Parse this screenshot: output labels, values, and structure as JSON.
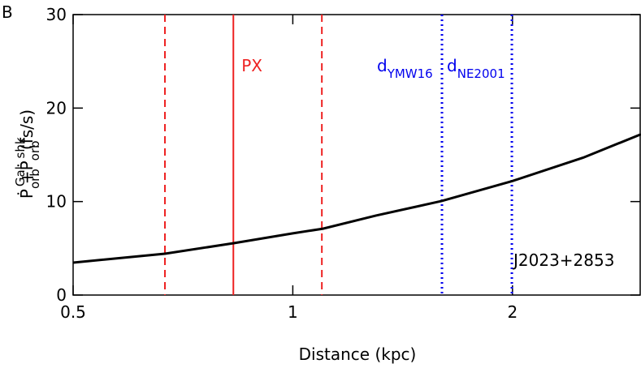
{
  "chart_data": {
    "type": "line",
    "panel_label": "B",
    "xlabel": "Distance (kpc)",
    "ylabel": [
      "Ṗ",
      "orb",
      "Gal",
      "+Ṗ",
      "orb",
      "shk",
      " (fs/s)"
    ],
    "xlim": [
      0.5,
      3.0
    ],
    "ylim": [
      0,
      30
    ],
    "log_x": true,
    "xticks": [
      0.5,
      1,
      2
    ],
    "yticks": [
      0,
      10,
      20,
      30
    ],
    "series": [
      {
        "color": "#000000",
        "x": [
          0.5,
          0.668,
          0.83,
          1.0,
          1.1,
          1.3,
          1.6,
          2.0,
          2.5,
          3.0
        ],
        "values": [
          3.47,
          4.42,
          5.55,
          6.6,
          7.1,
          8.5,
          10.06,
          12.2,
          14.7,
          17.2
        ]
      }
    ],
    "vlines": [
      {
        "x": 0.668,
        "color": "#ee2222",
        "style": "dashed"
      },
      {
        "x": 0.829,
        "color": "#ee2222",
        "style": "solid",
        "label": [
          "PX"
        ]
      },
      {
        "x": 1.096,
        "color": "#ee2222",
        "style": "dashed"
      },
      {
        "x": 1.601,
        "color": "#0000ee",
        "style": "dotted",
        "label": [
          "d",
          "YMW16"
        ]
      },
      {
        "x": 1.996,
        "color": "#0000ee",
        "style": "dotted",
        "label": [
          "d",
          "NE2001"
        ]
      }
    ],
    "annotation": "J2023+2853"
  }
}
